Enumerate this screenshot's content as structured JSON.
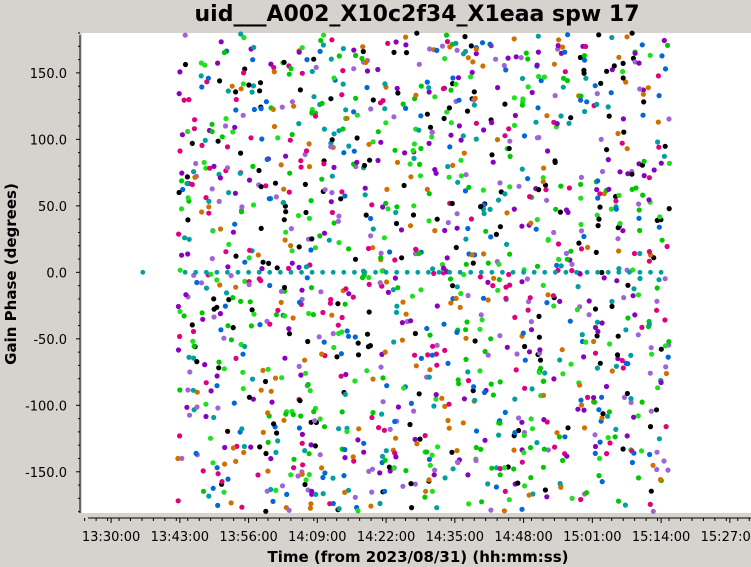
{
  "chart_data": {
    "type": "scatter",
    "title": "uid___A002_X10c2f34_X1eaa spw 17",
    "xlabel": "Time (from 2023/08/31) (hh:mm:ss)",
    "ylabel": "Gain Phase (degrees)",
    "xlim": [
      "13:24:30",
      "15:31:00"
    ],
    "ylim": [
      -181,
      180
    ],
    "grid": false,
    "y_ticks": [
      {
        "value": 150,
        "label": "150.0"
      },
      {
        "value": 100,
        "label": "100.0"
      },
      {
        "value": 50,
        "label": "50.0"
      },
      {
        "value": 0,
        "label": "0.0"
      },
      {
        "value": -50,
        "label": "-50.0"
      },
      {
        "value": -100,
        "label": "-100.0"
      },
      {
        "value": -150,
        "label": "-150.0"
      }
    ],
    "x_ticks": [
      {
        "value": "13:30:00",
        "label": "13:30:00"
      },
      {
        "value": "13:43:00",
        "label": "13:43:00"
      },
      {
        "value": "13:56:00",
        "label": "13:56:00"
      },
      {
        "value": "14:09:00",
        "label": "14:09:00"
      },
      {
        "value": "14:22:00",
        "label": "14:22:00"
      },
      {
        "value": "14:35:00",
        "label": "14:35:00"
      },
      {
        "value": "14:48:00",
        "label": "14:48:00"
      },
      {
        "value": "15:01:00",
        "label": "15:01:00"
      },
      {
        "value": "15:14:00",
        "label": "15:14:00"
      },
      {
        "value": "15:27:00",
        "label": "15:27:00"
      }
    ],
    "data_time_range": [
      "13:43:00",
      "15:15:00"
    ],
    "colors": [
      "#000000",
      "#0068d8",
      "#e0007f",
      "#00c800",
      "#a064d8",
      "#d07000",
      "#00a0a0",
      "#8a00c0",
      "#1ee01e"
    ],
    "reference_series": {
      "color": "#00a0a0",
      "y": 0,
      "points": [
        "13:36:00",
        "13:44:00",
        "13:46:00",
        "13:48:00",
        "13:50:00",
        "13:52:00",
        "13:54:00",
        "13:56:00",
        "13:58:00",
        "14:00:00",
        "14:02:00",
        "14:04:00",
        "14:06:00",
        "14:08:00",
        "14:10:00",
        "14:12:00",
        "14:14:00",
        "14:16:00",
        "14:18:00",
        "14:20:00",
        "14:22:00",
        "14:24:00",
        "14:26:00",
        "14:28:00",
        "14:30:00",
        "14:32:00",
        "14:34:00",
        "14:36:00",
        "14:38:00",
        "14:40:00",
        "14:42:00",
        "14:44:00",
        "14:46:00",
        "14:48:00",
        "14:50:00",
        "14:52:00",
        "14:54:00",
        "14:56:00",
        "14:58:00",
        "15:00:00",
        "15:02:00",
        "15:04:00",
        "15:06:00",
        "15:08:00",
        "15:10:00",
        "15:12:00",
        "15:14:00"
      ]
    }
  }
}
